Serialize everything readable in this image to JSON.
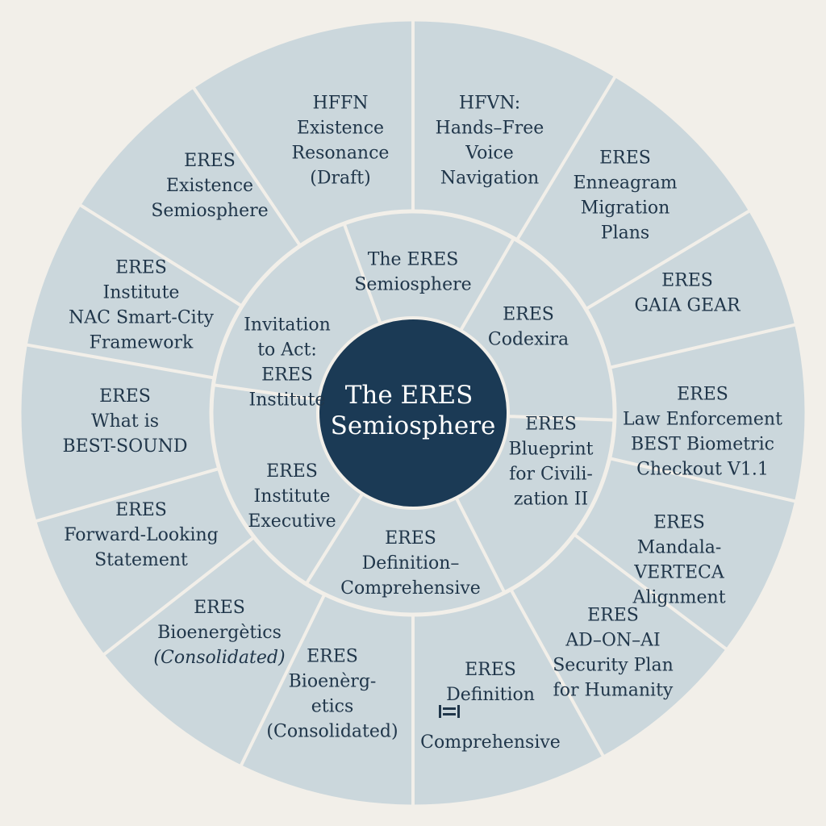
{
  "center": {
    "lines": [
      "The ERES",
      "Semiosphere"
    ]
  },
  "inner_segments": [
    {
      "lines": [
        "The ERES",
        "Semiosphere"
      ]
    },
    {
      "lines": [
        "ERES",
        "Codexira"
      ]
    },
    {
      "lines": [
        "ERES",
        "Blueprint",
        "for Civili-",
        "zation II"
      ]
    },
    {
      "lines": [
        "ERES",
        "Definition–",
        "Comprehensive"
      ]
    },
    {
      "lines": [
        "ERES",
        "Institute",
        "Executive"
      ]
    },
    {
      "lines": [
        "Invitation",
        "to Act:",
        "ERES",
        "Institute"
      ]
    }
  ],
  "outer_segments": [
    {
      "lines": [
        "HFVN:",
        "Hands–Free",
        "Voice",
        "Navigation"
      ]
    },
    {
      "lines": [
        "ERES",
        "Enneagram",
        "Migration",
        "Plans"
      ]
    },
    {
      "lines": [
        "ERES",
        "GAIA GEAR"
      ]
    },
    {
      "lines": [
        "ERES",
        "Law Enforcement",
        "BEST Biometric",
        "Checkout V1.1"
      ]
    },
    {
      "lines": [
        "ERES",
        "Mandala-",
        "VERTECA",
        "Alignment"
      ]
    },
    {
      "lines": [
        "ERES",
        "AD–ON–AI",
        "Security Plan",
        "for Humanity"
      ]
    },
    {
      "lines": [
        "ERES",
        "Definition",
        "Comprehensive"
      ],
      "icon": "equals-bar-icon"
    },
    {
      "lines": [
        "ERES",
        "Bioenèrg-",
        "etics",
        "(Consolidated)"
      ]
    },
    {
      "lines": [
        "ERES",
        "Bioenergètics",
        "(Consolidated)"
      ],
      "italic_last": true
    },
    {
      "lines": [
        "ERES",
        "Forward-Looking",
        "Statement"
      ]
    },
    {
      "lines": [
        "ERES",
        "What is",
        "BEST-SOUND"
      ]
    },
    {
      "lines": [
        "ERES",
        "Institute",
        "NAC Smart-City",
        "Framework"
      ]
    },
    {
      "lines": [
        "ERES",
        "Existence",
        "Semiosphere"
      ]
    },
    {
      "lines": [
        "HFFN",
        "Existence",
        "Resonance",
        "(Draft)"
      ]
    }
  ]
}
